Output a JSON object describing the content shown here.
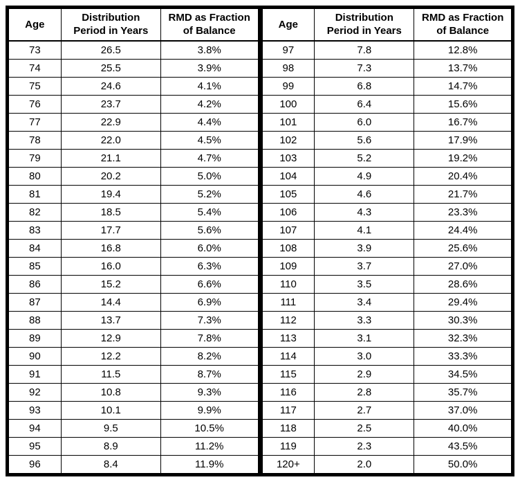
{
  "chart_data": {
    "type": "table",
    "columns": [
      "Age",
      "Distribution Period in Years",
      "RMD as Fraction of Balance"
    ],
    "rows": [
      [
        "73",
        "26.5",
        "3.8%"
      ],
      [
        "74",
        "25.5",
        "3.9%"
      ],
      [
        "75",
        "24.6",
        "4.1%"
      ],
      [
        "76",
        "23.7",
        "4.2%"
      ],
      [
        "77",
        "22.9",
        "4.4%"
      ],
      [
        "78",
        "22.0",
        "4.5%"
      ],
      [
        "79",
        "21.1",
        "4.7%"
      ],
      [
        "80",
        "20.2",
        "5.0%"
      ],
      [
        "81",
        "19.4",
        "5.2%"
      ],
      [
        "82",
        "18.5",
        "5.4%"
      ],
      [
        "83",
        "17.7",
        "5.6%"
      ],
      [
        "84",
        "16.8",
        "6.0%"
      ],
      [
        "85",
        "16.0",
        "6.3%"
      ],
      [
        "86",
        "15.2",
        "6.6%"
      ],
      [
        "87",
        "14.4",
        "6.9%"
      ],
      [
        "88",
        "13.7",
        "7.3%"
      ],
      [
        "89",
        "12.9",
        "7.8%"
      ],
      [
        "90",
        "12.2",
        "8.2%"
      ],
      [
        "91",
        "11.5",
        "8.7%"
      ],
      [
        "92",
        "10.8",
        "9.3%"
      ],
      [
        "93",
        "10.1",
        "9.9%"
      ],
      [
        "94",
        "9.5",
        "10.5%"
      ],
      [
        "95",
        "8.9",
        "11.2%"
      ],
      [
        "96",
        "8.4",
        "11.9%"
      ],
      [
        "97",
        "7.8",
        "12.8%"
      ],
      [
        "98",
        "7.3",
        "13.7%"
      ],
      [
        "99",
        "6.8",
        "14.7%"
      ],
      [
        "100",
        "6.4",
        "15.6%"
      ],
      [
        "101",
        "6.0",
        "16.7%"
      ],
      [
        "102",
        "5.6",
        "17.9%"
      ],
      [
        "103",
        "5.2",
        "19.2%"
      ],
      [
        "104",
        "4.9",
        "20.4%"
      ],
      [
        "105",
        "4.6",
        "21.7%"
      ],
      [
        "106",
        "4.3",
        "23.3%"
      ],
      [
        "107",
        "4.1",
        "24.4%"
      ],
      [
        "108",
        "3.9",
        "25.6%"
      ],
      [
        "109",
        "3.7",
        "27.0%"
      ],
      [
        "110",
        "3.5",
        "28.6%"
      ],
      [
        "111",
        "3.4",
        "29.4%"
      ],
      [
        "112",
        "3.3",
        "30.3%"
      ],
      [
        "113",
        "3.1",
        "32.3%"
      ],
      [
        "114",
        "3.0",
        "33.3%"
      ],
      [
        "115",
        "2.9",
        "34.5%"
      ],
      [
        "116",
        "2.8",
        "35.7%"
      ],
      [
        "117",
        "2.7",
        "37.0%"
      ],
      [
        "118",
        "2.5",
        "40.0%"
      ],
      [
        "119",
        "2.3",
        "43.5%"
      ],
      [
        "120+",
        "2.0",
        "50.0%"
      ]
    ]
  },
  "tables": [
    {
      "headers": [
        {
          "line1": "Age",
          "line2": ""
        },
        {
          "line1": "Distribution",
          "line2": "Period in Years"
        },
        {
          "line1": "RMD as Fraction",
          "line2": "of Balance"
        }
      ],
      "rows": [
        [
          "73",
          "26.5",
          "3.8%"
        ],
        [
          "74",
          "25.5",
          "3.9%"
        ],
        [
          "75",
          "24.6",
          "4.1%"
        ],
        [
          "76",
          "23.7",
          "4.2%"
        ],
        [
          "77",
          "22.9",
          "4.4%"
        ],
        [
          "78",
          "22.0",
          "4.5%"
        ],
        [
          "79",
          "21.1",
          "4.7%"
        ],
        [
          "80",
          "20.2",
          "5.0%"
        ],
        [
          "81",
          "19.4",
          "5.2%"
        ],
        [
          "82",
          "18.5",
          "5.4%"
        ],
        [
          "83",
          "17.7",
          "5.6%"
        ],
        [
          "84",
          "16.8",
          "6.0%"
        ],
        [
          "85",
          "16.0",
          "6.3%"
        ],
        [
          "86",
          "15.2",
          "6.6%"
        ],
        [
          "87",
          "14.4",
          "6.9%"
        ],
        [
          "88",
          "13.7",
          "7.3%"
        ],
        [
          "89",
          "12.9",
          "7.8%"
        ],
        [
          "90",
          "12.2",
          "8.2%"
        ],
        [
          "91",
          "11.5",
          "8.7%"
        ],
        [
          "92",
          "10.8",
          "9.3%"
        ],
        [
          "93",
          "10.1",
          "9.9%"
        ],
        [
          "94",
          "9.5",
          "10.5%"
        ],
        [
          "95",
          "8.9",
          "11.2%"
        ],
        [
          "96",
          "8.4",
          "11.9%"
        ]
      ]
    },
    {
      "headers": [
        {
          "line1": "Age",
          "line2": ""
        },
        {
          "line1": "Distribution",
          "line2": "Period in Years"
        },
        {
          "line1": "RMD as Fraction",
          "line2": "of Balance"
        }
      ],
      "rows": [
        [
          "97",
          "7.8",
          "12.8%"
        ],
        [
          "98",
          "7.3",
          "13.7%"
        ],
        [
          "99",
          "6.8",
          "14.7%"
        ],
        [
          "100",
          "6.4",
          "15.6%"
        ],
        [
          "101",
          "6.0",
          "16.7%"
        ],
        [
          "102",
          "5.6",
          "17.9%"
        ],
        [
          "103",
          "5.2",
          "19.2%"
        ],
        [
          "104",
          "4.9",
          "20.4%"
        ],
        [
          "105",
          "4.6",
          "21.7%"
        ],
        [
          "106",
          "4.3",
          "23.3%"
        ],
        [
          "107",
          "4.1",
          "24.4%"
        ],
        [
          "108",
          "3.9",
          "25.6%"
        ],
        [
          "109",
          "3.7",
          "27.0%"
        ],
        [
          "110",
          "3.5",
          "28.6%"
        ],
        [
          "111",
          "3.4",
          "29.4%"
        ],
        [
          "112",
          "3.3",
          "30.3%"
        ],
        [
          "113",
          "3.1",
          "32.3%"
        ],
        [
          "114",
          "3.0",
          "33.3%"
        ],
        [
          "115",
          "2.9",
          "34.5%"
        ],
        [
          "116",
          "2.8",
          "35.7%"
        ],
        [
          "117",
          "2.7",
          "37.0%"
        ],
        [
          "118",
          "2.5",
          "40.0%"
        ],
        [
          "119",
          "2.3",
          "43.5%"
        ],
        [
          "120+",
          "2.0",
          "50.0%"
        ]
      ]
    }
  ],
  "colors": {
    "border": "#000000",
    "text": "#000000",
    "background": "#ffffff"
  }
}
